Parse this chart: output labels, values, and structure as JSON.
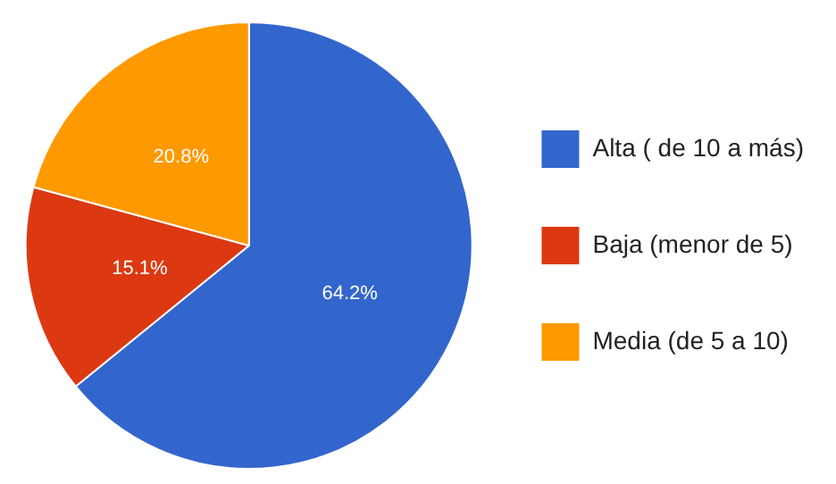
{
  "chart_data": {
    "type": "pie",
    "categories": [
      "Alta ( de 10 a más)",
      "Baja (menor de 5)",
      "Media (de 5 a 10)"
    ],
    "values": [
      64.2,
      15.1,
      20.8
    ],
    "colors": [
      "#3366cc",
      "#dc3912",
      "#ff9900"
    ],
    "value_labels": [
      "64.2%",
      "15.1%",
      "20.8%"
    ],
    "legend": "right"
  }
}
